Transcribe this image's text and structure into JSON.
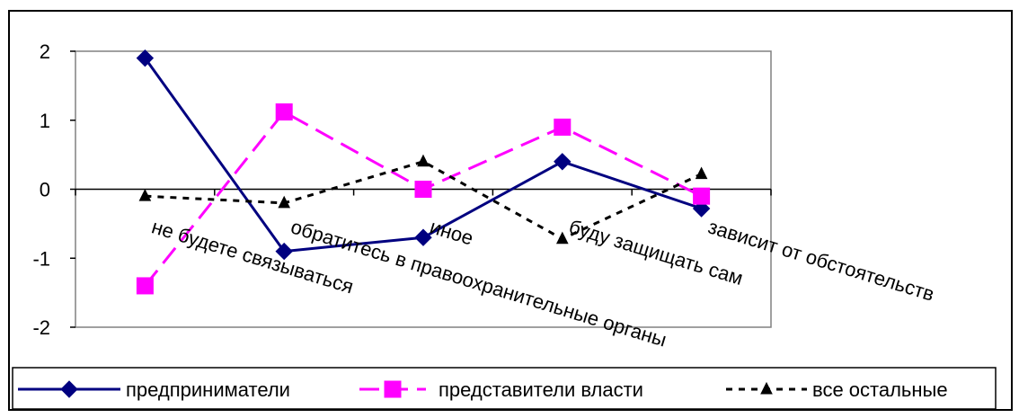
{
  "chart_data": {
    "type": "line",
    "title": "",
    "xlabel": "",
    "ylabel": "",
    "ylim": [
      -2,
      2
    ],
    "yticks": [
      2,
      1,
      0,
      -1,
      -2
    ],
    "grid": false,
    "legend_position": "bottom",
    "categories": [
      "не будете связываться",
      "обратитесь в правоохранительные органы",
      "иное",
      "буду защищать сам",
      "зависит от обстоятельств"
    ],
    "series": [
      {
        "name": "предприниматели",
        "values": [
          1.9,
          -0.9,
          -0.7,
          0.4,
          -0.28
        ],
        "color": "#000080",
        "marker": "diamond",
        "dash": "solid"
      },
      {
        "name": "представители власти",
        "values": [
          -1.4,
          1.12,
          0.0,
          0.9,
          -0.1
        ],
        "color": "#ff00ff",
        "marker": "square",
        "dash": "dashed"
      },
      {
        "name": "все остальные",
        "values": [
          -0.1,
          -0.2,
          0.4,
          -0.72,
          0.22
        ],
        "color": "#000000",
        "marker": "triangle",
        "dash": "dotted"
      }
    ]
  }
}
